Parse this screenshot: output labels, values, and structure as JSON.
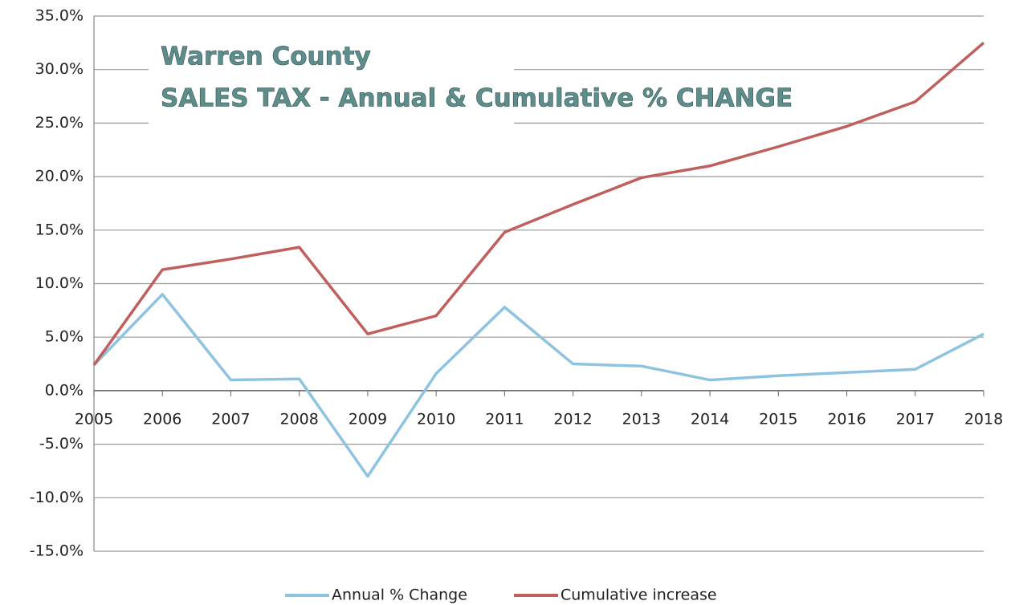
{
  "chart_data": {
    "type": "line",
    "title": "Warren County",
    "subtitle": "SALES TAX - Annual & Cumulative % CHANGE",
    "categories": [
      "2005",
      "2006",
      "2007",
      "2008",
      "2009",
      "2010",
      "2011",
      "2012",
      "2013",
      "2014",
      "2015",
      "2016",
      "2017",
      "2018"
    ],
    "series": [
      {
        "name": "Annual % Change",
        "color": "#8ec4e0",
        "values": [
          2.4,
          9.0,
          1.0,
          1.1,
          -8.0,
          1.6,
          7.8,
          2.5,
          2.3,
          1.0,
          1.4,
          1.7,
          2.0,
          5.3
        ]
      },
      {
        "name": "Cumulative increase",
        "color": "#c0605e",
        "values": [
          2.4,
          11.3,
          12.3,
          13.4,
          5.3,
          7.0,
          14.8,
          17.4,
          19.9,
          21.0,
          22.8,
          24.7,
          27.0,
          32.5
        ]
      }
    ],
    "ylim": [
      -15,
      35
    ],
    "yticks": [
      {
        "value": -15,
        "label": "-15.0%"
      },
      {
        "value": -10,
        "label": "-10.0%"
      },
      {
        "value": -5,
        "label": "-5.0%"
      },
      {
        "value": 0,
        "label": "0.0%"
      },
      {
        "value": 5,
        "label": "5.0%"
      },
      {
        "value": 10,
        "label": "10.0%"
      },
      {
        "value": 15,
        "label": "15.0%"
      },
      {
        "value": 20,
        "label": "20.0%"
      },
      {
        "value": 25,
        "label": "25.0%"
      },
      {
        "value": 30,
        "label": "30.0%"
      },
      {
        "value": 35,
        "label": "35.0%"
      }
    ],
    "grid": true,
    "legend": "bottom"
  }
}
